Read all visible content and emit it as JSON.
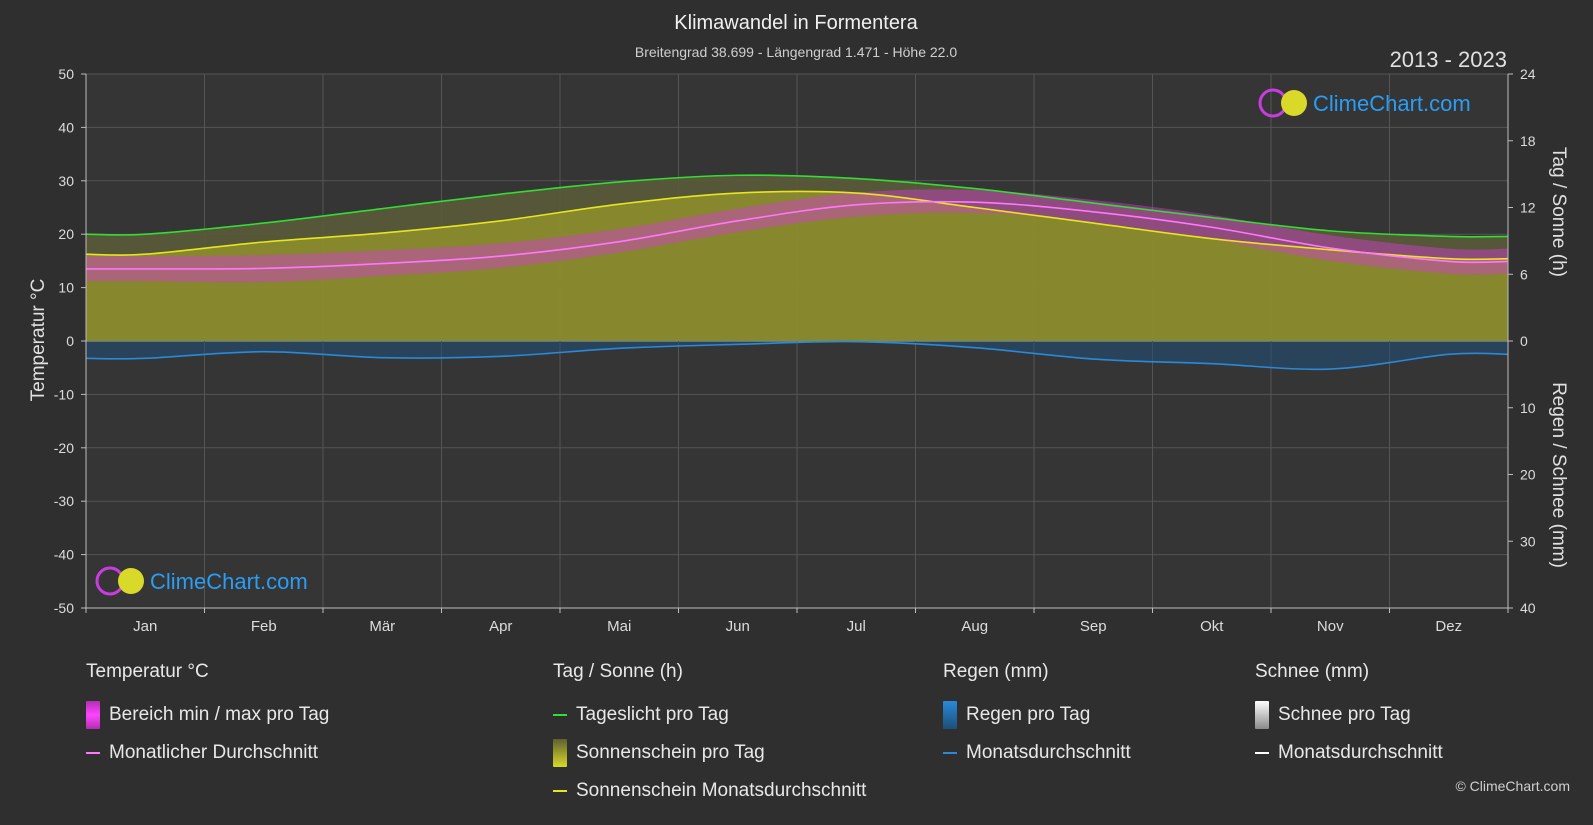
{
  "header": {
    "title": "Klimawandel in Formentera",
    "subtitle": "Breitengrad 38.699 - Längengrad 1.471 - Höhe 22.0",
    "years": "2013 - 2023"
  },
  "brand": {
    "text": "ClimeChart.com",
    "copyright": "© ClimeChart.com"
  },
  "colors": {
    "background": "#2f2f2f",
    "daylight": "#33dd33",
    "sunshine_line": "#e6e620",
    "sunshine_fill": "#8d8d2c",
    "temp_range": "#d43cd4",
    "temp_avg": "#ff77ff",
    "rain": "#2a89d8",
    "rain_fill": "#1d4f78",
    "snow": "#ffffff",
    "brand_text": "#2a9df4"
  },
  "chart_data": {
    "type": "line",
    "months": [
      "Jan",
      "Feb",
      "Mär",
      "Apr",
      "Mai",
      "Jun",
      "Jul",
      "Aug",
      "Sep",
      "Okt",
      "Nov",
      "Dez"
    ],
    "left_axis": {
      "label": "Temperatur °C",
      "ylim": [
        -50,
        50
      ],
      "ticks": [
        50,
        40,
        30,
        20,
        10,
        0,
        -10,
        -20,
        -30,
        -40,
        -50
      ]
    },
    "right_axis_top": {
      "label": "Tag / Sonne (h)",
      "ylim": [
        0,
        24
      ],
      "ticks": [
        24,
        18,
        12,
        6,
        0
      ]
    },
    "right_axis_bottom": {
      "label": "Regen / Schnee (mm)",
      "ylim": [
        0,
        40
      ],
      "ticks": [
        0,
        10,
        20,
        30,
        40
      ]
    },
    "grid": true,
    "series": [
      {
        "name": "Tageslicht pro Tag",
        "axis": "hours",
        "values": [
          9.6,
          10.6,
          11.9,
          13.2,
          14.3,
          14.9,
          14.6,
          13.7,
          12.4,
          11.1,
          9.9,
          9.4
        ]
      },
      {
        "name": "Sonnenschein Monatsdurchschnitt",
        "axis": "hours",
        "values": [
          7.8,
          8.9,
          9.7,
          10.8,
          12.3,
          13.3,
          13.3,
          12.0,
          10.6,
          9.2,
          8.2,
          7.4
        ]
      },
      {
        "name": "Monatlicher Durchschnitt",
        "axis": "temp",
        "values": [
          13.5,
          13.6,
          14.5,
          15.9,
          18.6,
          22.5,
          25.5,
          26.0,
          24.2,
          21.3,
          17.4,
          14.9
        ]
      },
      {
        "name": "Bereich min / max pro Tag",
        "axis": "temp",
        "min": [
          11.2,
          11.0,
          12.2,
          13.7,
          16.6,
          20.4,
          23.3,
          24.0,
          22.2,
          19.0,
          15.0,
          12.6
        ],
        "max": [
          15.9,
          16.1,
          17.0,
          18.3,
          21.0,
          24.8,
          27.8,
          28.3,
          26.4,
          23.6,
          19.8,
          17.3
        ]
      },
      {
        "name": "Monatsdurchschnitt",
        "axis": "rain_mm",
        "values": [
          2.6,
          1.6,
          2.5,
          2.3,
          1.1,
          0.5,
          0.1,
          1.0,
          2.7,
          3.4,
          4.2,
          2.0
        ]
      }
    ]
  },
  "legend": [
    {
      "head": "Temperatur °C",
      "items": [
        {
          "label": "Bereich min / max pro Tag",
          "kind": "box-temp"
        },
        {
          "label": "Monatlicher Durchschnitt",
          "kind": "line-temp"
        }
      ]
    },
    {
      "head": "Tag / Sonne (h)",
      "items": [
        {
          "label": "Tageslicht pro Tag",
          "kind": "line-daylight"
        },
        {
          "label": "Sonnenschein pro Tag",
          "kind": "box-sun"
        },
        {
          "label": "Sonnenschein Monatsdurchschnitt",
          "kind": "line-sun"
        }
      ]
    },
    {
      "head": "Regen (mm)",
      "items": [
        {
          "label": "Regen pro Tag",
          "kind": "box-rain"
        },
        {
          "label": "Monatsdurchschnitt",
          "kind": "line-rain"
        }
      ]
    },
    {
      "head": "Schnee (mm)",
      "items": [
        {
          "label": "Schnee pro Tag",
          "kind": "box-snow"
        },
        {
          "label": "Monatsdurchschnitt",
          "kind": "line-snow"
        }
      ]
    }
  ]
}
